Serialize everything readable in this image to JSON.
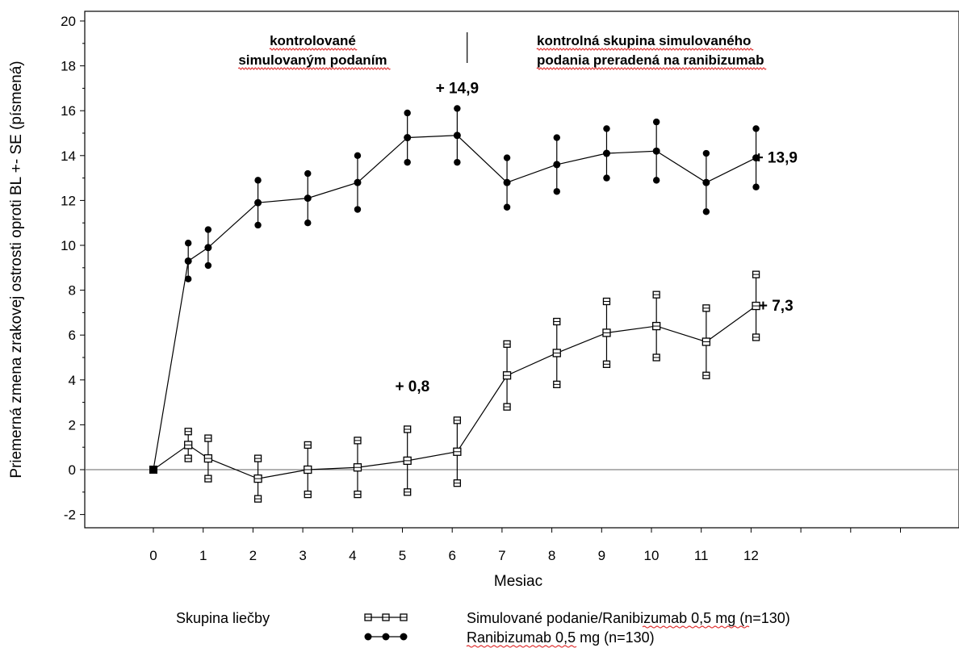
{
  "chart_data": {
    "type": "line",
    "xlabel": "Mesiac",
    "ylabel": "Priemerná zmena zrakovej ostrosti oproti BL +- SE (písmená)",
    "ylim": [
      -2,
      20
    ],
    "xlim": [
      -0.5,
      13.5
    ],
    "x_ticks": [
      0,
      1,
      2,
      3,
      4,
      5,
      6,
      7,
      8,
      9,
      10,
      11,
      12
    ],
    "y_ticks": [
      -2,
      0,
      2,
      4,
      6,
      8,
      10,
      12,
      14,
      16,
      18,
      20
    ],
    "grid": false,
    "reference_line_y": 0,
    "phase_divider_x": 6.3,
    "phase_labels": [
      {
        "line1": "kontrolované",
        "line2": "simulovaným podaním",
        "x": 3.2
      },
      {
        "line1": "kontrolná skupina simulovaného",
        "line2": "podania preradená na ranibizumab",
        "x": 7.3
      }
    ],
    "series": [
      {
        "name": "Ranibizumab 0,5 mg (n=130)",
        "marker": "filled-circle",
        "x": [
          0,
          0.7,
          1.1,
          2.1,
          3.1,
          4.1,
          5.1,
          6.1,
          7.1,
          8.1,
          9.1,
          10.1,
          11.1,
          12.1
        ],
        "y": [
          0,
          9.3,
          9.9,
          11.9,
          12.1,
          12.8,
          14.8,
          14.9,
          12.8,
          13.6,
          14.1,
          14.2,
          12.8,
          13.9
        ],
        "se": [
          0,
          0.8,
          0.8,
          1.0,
          1.1,
          1.2,
          1.1,
          1.2,
          1.1,
          1.2,
          1.1,
          1.3,
          1.3,
          1.3
        ]
      },
      {
        "name": "Simulované podanie/Ranibizumab 0,5 mg (n=130)",
        "marker": "open-square",
        "x": [
          0,
          0.7,
          1.1,
          2.1,
          3.1,
          4.1,
          5.1,
          6.1,
          7.1,
          8.1,
          9.1,
          10.1,
          11.1,
          12.1
        ],
        "y": [
          0,
          1.1,
          0.5,
          -0.4,
          0,
          0.1,
          0.4,
          0.8,
          4.2,
          5.2,
          6.1,
          6.4,
          5.7,
          7.3
        ],
        "se": [
          0,
          0.6,
          0.9,
          0.9,
          1.1,
          1.2,
          1.4,
          1.4,
          1.4,
          1.4,
          1.4,
          1.4,
          1.5,
          1.4
        ]
      }
    ],
    "annotations": [
      {
        "text": "+ 14,9",
        "x": 6.1,
        "y": 17.0
      },
      {
        "text": "+ 13,9",
        "x": 12.5,
        "y": 13.9
      },
      {
        "text": "+ 7,3",
        "x": 12.5,
        "y": 7.3
      },
      {
        "text": "+ 0,8",
        "x": 5.2,
        "y": 3.7
      }
    ],
    "legend": {
      "title": "Skupina liečby",
      "placement": "bottom",
      "items": [
        {
          "label": "Simulované podanie/Ranibizumab 0,5 mg (n=130)",
          "marker": "open-square"
        },
        {
          "label": "Ranibizumab 0,5 mg (n=130)",
          "marker": "filled-circle"
        }
      ]
    }
  }
}
